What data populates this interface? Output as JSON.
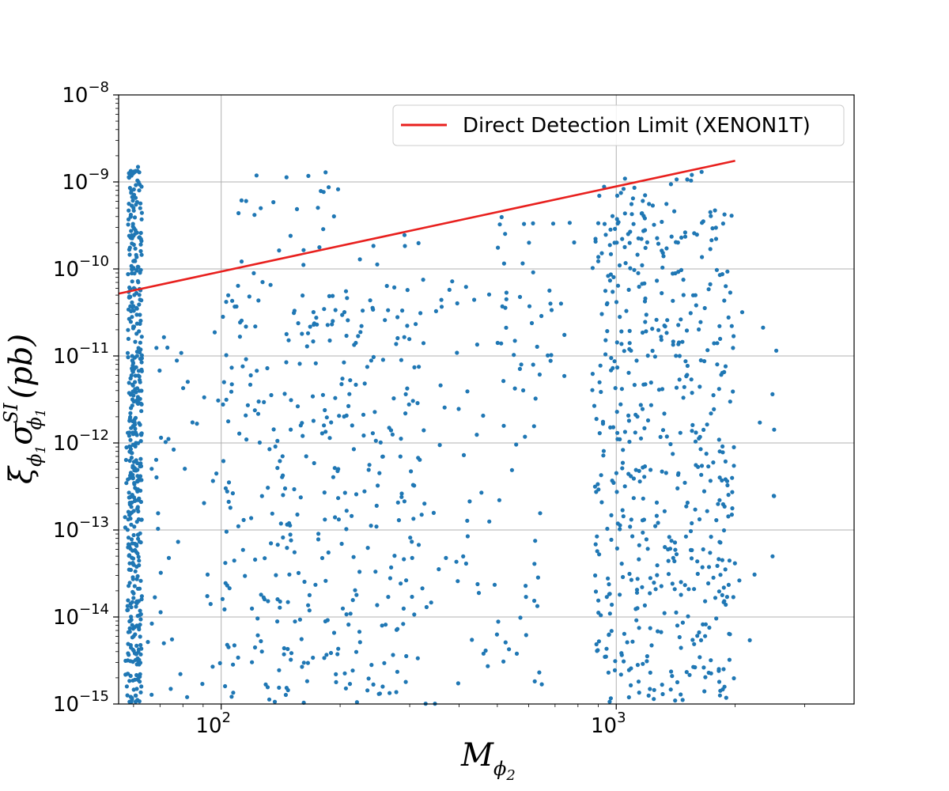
{
  "chart_data": {
    "type": "scatter",
    "xscale": "log",
    "yscale": "log",
    "xlim": [
      55,
      4000
    ],
    "ylim": [
      1e-15,
      1e-08
    ],
    "grid": true,
    "legend_position": "top-right",
    "xlabel": {
      "base": "M",
      "sub": "ϕ",
      "subsub": "2"
    },
    "ylabel": {
      "xi": "ξ",
      "xi_sub": "ϕ",
      "xi_subsub": "1",
      "sigma": "σ",
      "sigma_sub": "ϕ",
      "sigma_subsub": "1",
      "sigma_sup": "SI",
      "unit": "(pb)"
    },
    "x_tick_labels": [
      {
        "value": 100,
        "base": "10",
        "exp": "2"
      },
      {
        "value": 1000,
        "base": "10",
        "exp": "3"
      }
    ],
    "y_tick_labels": [
      {
        "value": 1e-15,
        "base": "10",
        "exp": "−15"
      },
      {
        "value": 1e-14,
        "base": "10",
        "exp": "−14"
      },
      {
        "value": 1e-13,
        "base": "10",
        "exp": "−13"
      },
      {
        "value": 1e-12,
        "base": "10",
        "exp": "−12"
      },
      {
        "value": 1e-11,
        "base": "10",
        "exp": "−11"
      },
      {
        "value": 1e-10,
        "base": "10",
        "exp": "−10"
      },
      {
        "value": 1e-09,
        "base": "10",
        "exp": "−9"
      },
      {
        "value": 1e-08,
        "base": "10",
        "exp": "−8"
      }
    ],
    "series": [
      {
        "name": "Direct Detection Limit (XENON1T)",
        "kind": "line",
        "color": "#e8201e",
        "x": [
          55,
          2000
        ],
        "y": [
          5.2e-11,
          1.75e-09
        ]
      },
      {
        "kind": "scatter",
        "color": "#1f77b4",
        "clusters": [
          {
            "x_range": [
              58,
              63
            ],
            "y_log_range": [
              -15,
              -8.8
            ],
            "count": 420
          },
          {
            "x_range": [
              57,
              62
            ],
            "y_log_range": [
              -15,
              -12
            ],
            "count": 40
          },
          {
            "x_range": [
              65,
              100
            ],
            "y_log_range": [
              -15,
              -10.7
            ],
            "count": 45
          },
          {
            "x_range": [
              100,
              330
            ],
            "y_log_range": [
              -15,
              -10.3
            ],
            "count": 360
          },
          {
            "x_range": [
              110,
              200
            ],
            "y_log_range": [
              -10.3,
              -8.8
            ],
            "count": 28
          },
          {
            "x_range": [
              200,
              400
            ],
            "y_log_range": [
              -10.5,
              -9.6
            ],
            "count": 18
          },
          {
            "x_range": [
              330,
              650
            ],
            "y_log_range": [
              -15,
              -10.2
            ],
            "count": 70
          },
          {
            "x_range": [
              500,
              880
            ],
            "y_log_range": [
              -11.5,
              -9.4
            ],
            "count": 40
          },
          {
            "x_range": [
              880,
              2000
            ],
            "y_log_range": [
              -15,
              -9.3
            ],
            "count": 520
          },
          {
            "x_range": [
              900,
              1700
            ],
            "y_log_range": [
              -9.3,
              -8.8
            ],
            "count": 20
          },
          {
            "x_range": [
              1800,
              2600
            ],
            "y_log_range": [
              -14.3,
              -9.8
            ],
            "count": 18
          }
        ]
      }
    ]
  }
}
